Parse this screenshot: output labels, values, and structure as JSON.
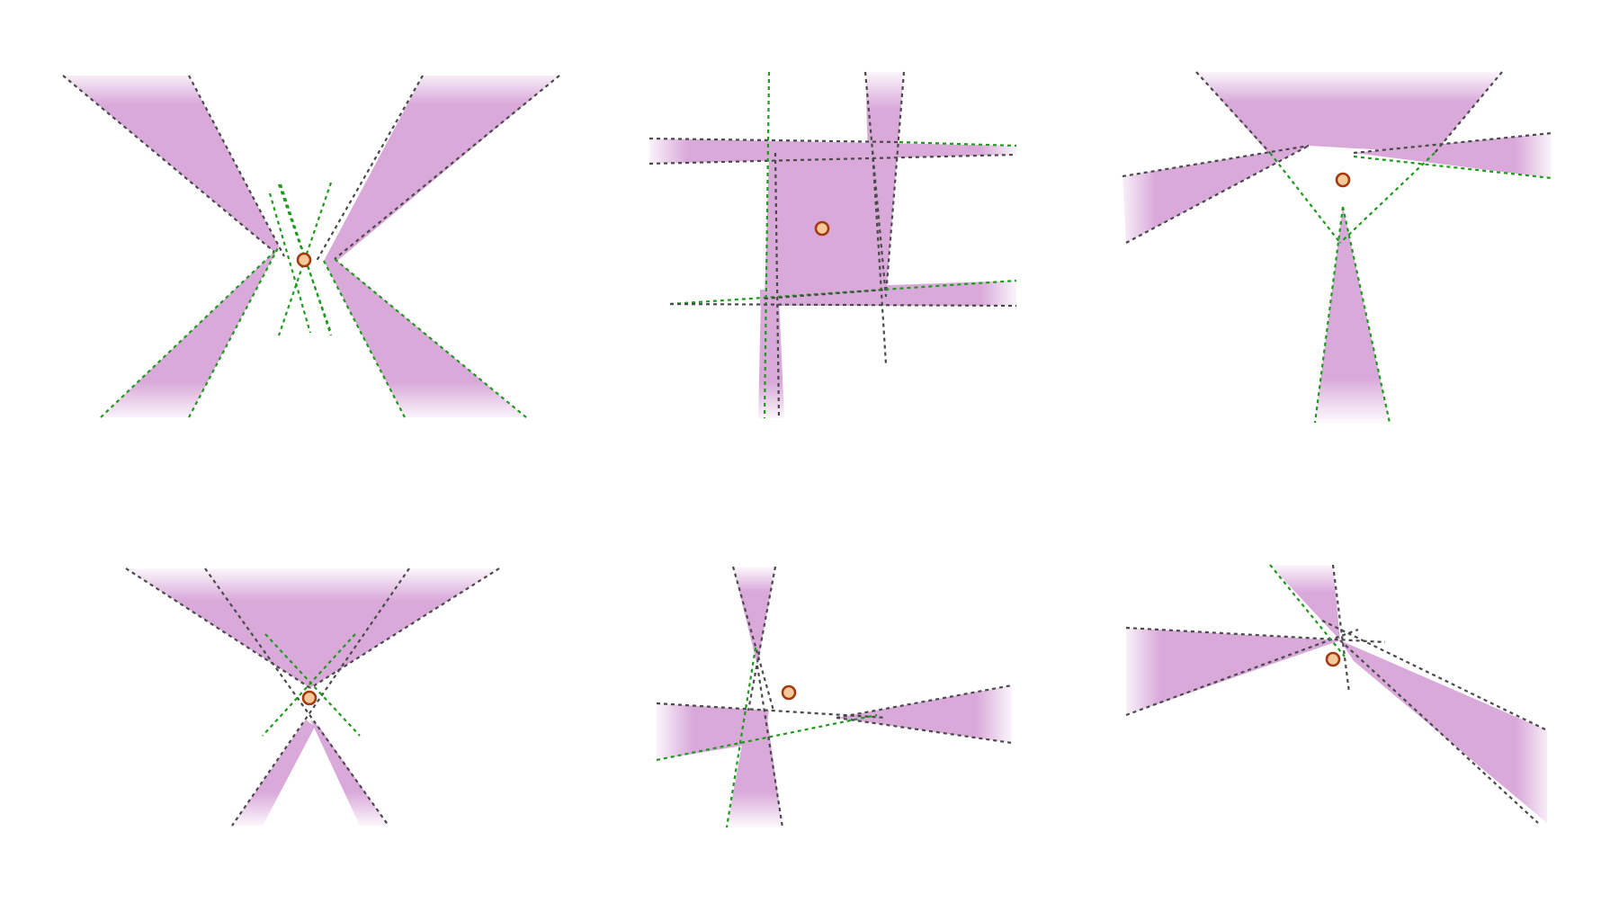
{
  "colors": {
    "background": "#ffffff",
    "region_fill": "#d9a9da",
    "dashed_line": "#1e9a1e",
    "dashed_line_dark": "#4a4a4a",
    "point_fill": "#f6c99a",
    "point_stroke": "#a33a10"
  },
  "panels": [
    {
      "name": "panel-x-shape",
      "description_shape": "two crossing wedges",
      "point_count": 1
    },
    {
      "name": "panel-hash-shape",
      "description_shape": "four strips enclosing a quadrilateral",
      "point_count": 1
    },
    {
      "name": "panel-triangle-shape",
      "description_shape": "three wedges around a point",
      "point_count": 1
    },
    {
      "name": "panel-hourglass-shape",
      "description_shape": "inverted wedge over two legs",
      "point_count": 1
    },
    {
      "name": "panel-plus-shape",
      "description_shape": "thin crossing wedges",
      "point_count": 1
    },
    {
      "name": "panel-fan-shape",
      "description_shape": "three wedges meeting near a point",
      "point_count": 1
    }
  ]
}
